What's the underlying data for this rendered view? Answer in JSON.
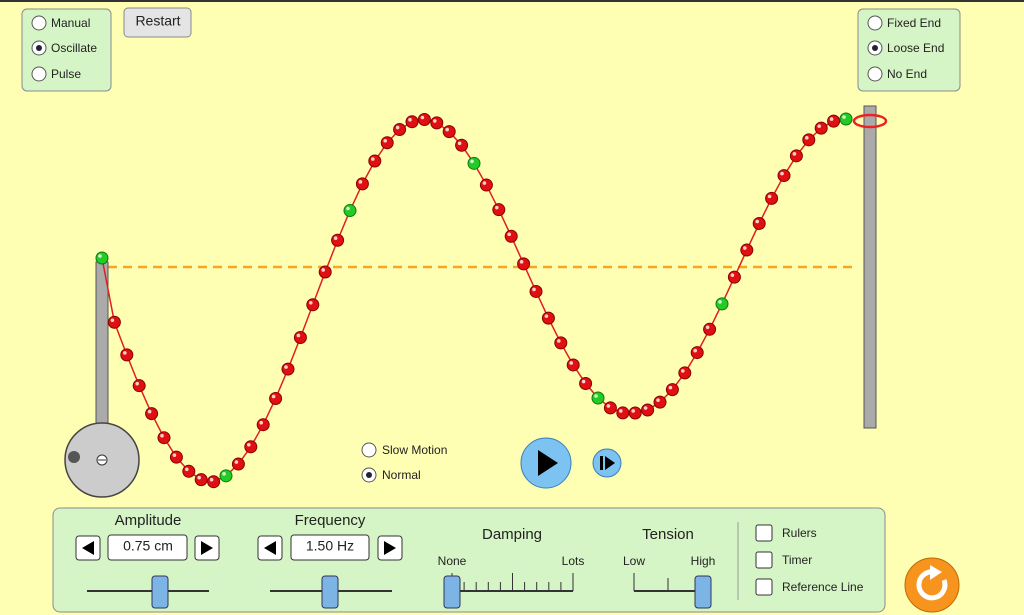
{
  "mode_options": [
    "Manual",
    "Oscillate",
    "Pulse"
  ],
  "restart": "Restart",
  "end_options": [
    "Fixed End",
    "Loose End",
    "No End"
  ],
  "speed_options": [
    "Slow Motion",
    "Normal"
  ],
  "controls": {
    "amplitude": {
      "label": "Amplitude",
      "value": "0.75 cm"
    },
    "frequency": {
      "label": "Frequency",
      "value": "1.50 Hz"
    },
    "damping": {
      "label": "Damping",
      "min": "None",
      "max": "Lots"
    },
    "tension": {
      "label": "Tension",
      "min": "Low",
      "max": "High"
    }
  },
  "checkboxes": [
    "Rulers",
    "Timer",
    "Reference Line"
  ]
}
